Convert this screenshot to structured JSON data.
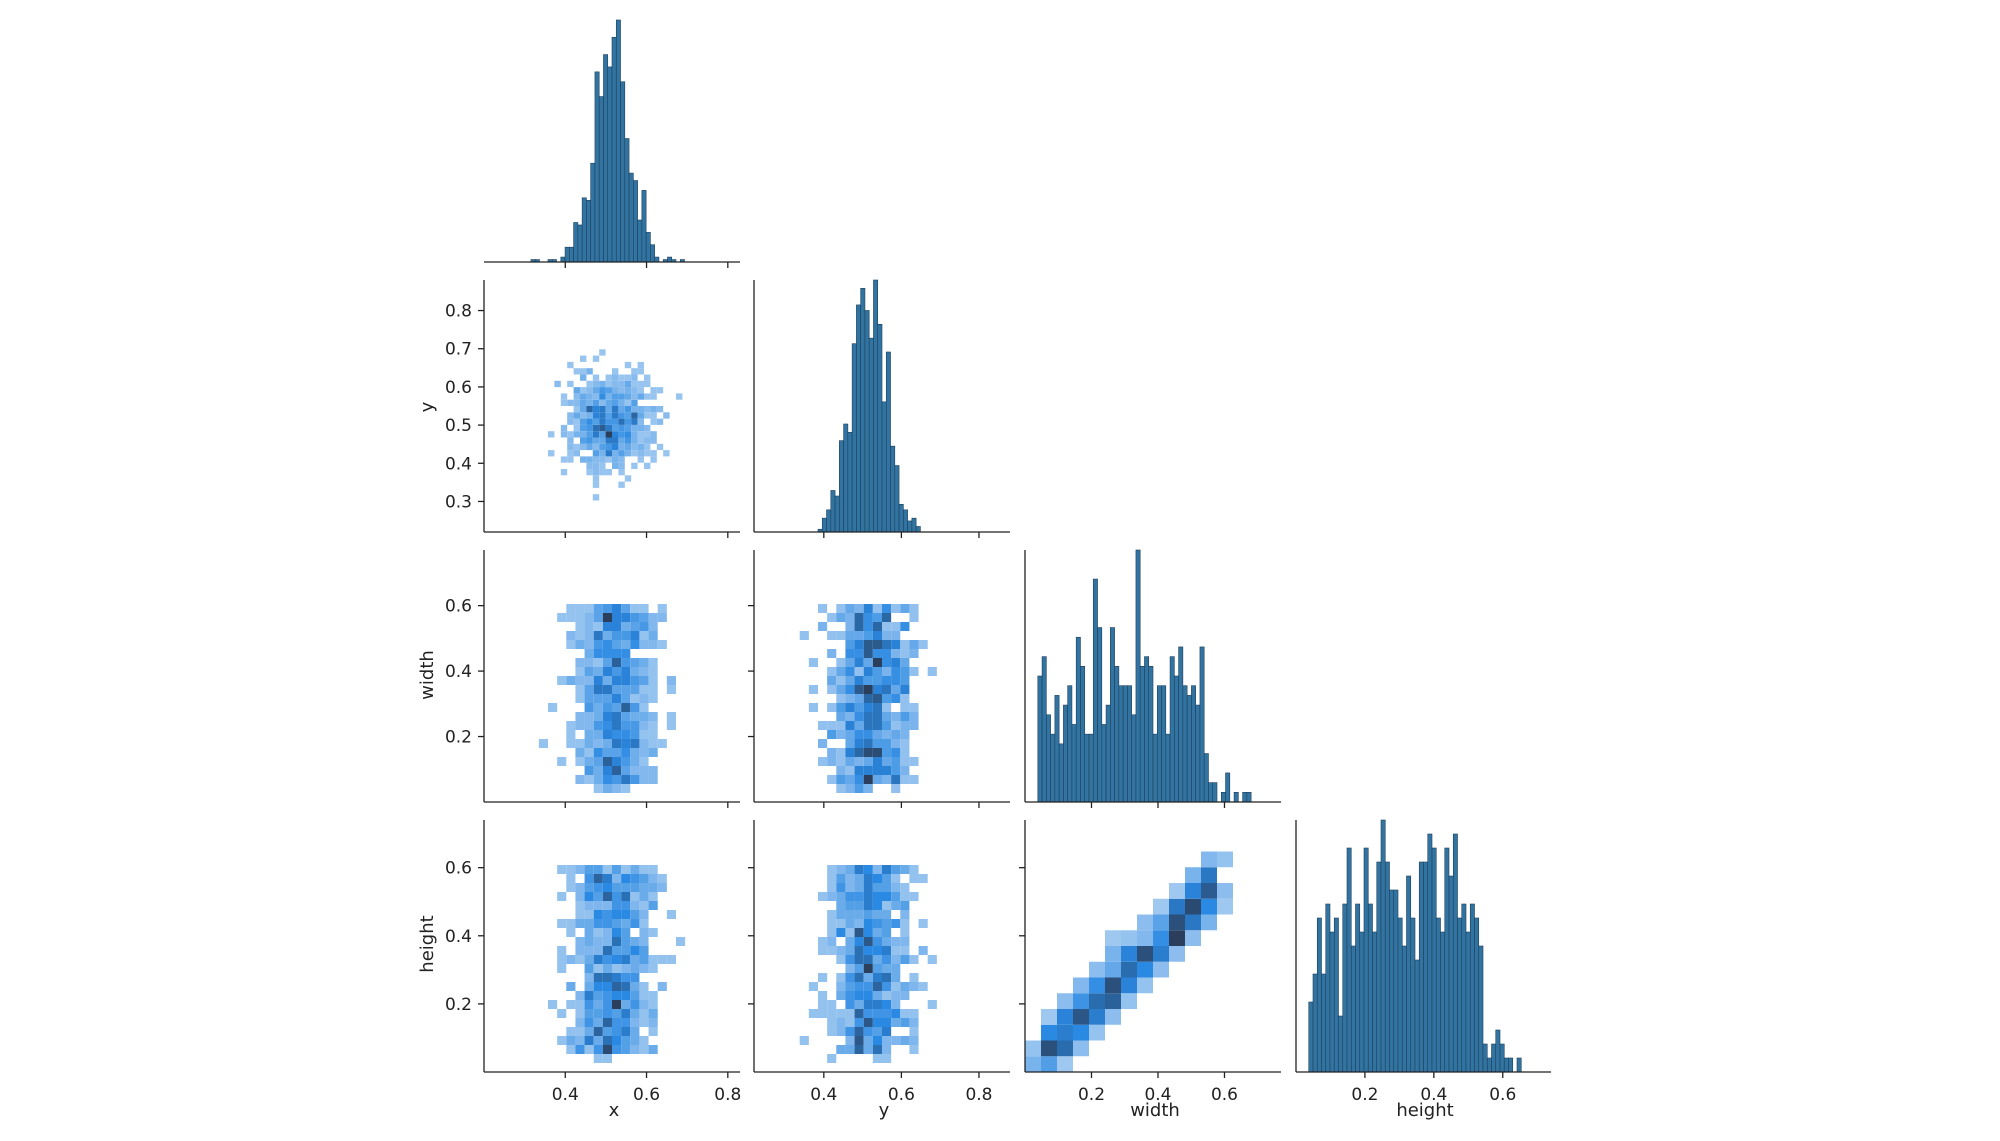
{
  "chart_data": {
    "type": "pairplot-histogram",
    "variables": [
      "x",
      "y",
      "width",
      "height"
    ],
    "colors": {
      "hist": "#3274a1",
      "edge": "#1f3f5a",
      "density_low": "#a9cdf2",
      "density_high": "#2b3f5c"
    },
    "ranges": {
      "x": [
        0.2,
        0.83
      ],
      "y": [
        0.22,
        0.88
      ],
      "width": [
        0.0,
        0.77
      ],
      "height": [
        0.0,
        0.74
      ]
    },
    "ticks": {
      "x": {
        "values": [
          0.4,
          0.6,
          0.8
        ],
        "labels": [
          "0.4",
          "0.6",
          "0.8"
        ]
      },
      "y_diag": {
        "values": [
          0.4,
          0.6,
          0.8
        ],
        "labels": [
          "0.4",
          "0.6",
          "0.8"
        ]
      },
      "y_row": {
        "values": [
          0.3,
          0.4,
          0.5,
          0.6,
          0.7,
          0.8
        ],
        "labels": [
          "0.3",
          "0.4",
          "0.5",
          "0.6",
          "0.7",
          "0.8"
        ]
      },
      "width": {
        "values": [
          0.2,
          0.4,
          0.6
        ],
        "labels": [
          "0.2",
          "0.4",
          "0.6"
        ]
      },
      "height": {
        "values": [
          0.2,
          0.4,
          0.6
        ],
        "labels": [
          "0.2",
          "0.4",
          "0.6"
        ]
      }
    },
    "diagonal_histograms": [
      {
        "variable": "x",
        "peak": 0.52,
        "spread": 0.045,
        "tail": "symmetric"
      },
      {
        "variable": "y",
        "peak": 0.52,
        "spread": 0.045,
        "tail": "symmetric"
      },
      {
        "variable": "width",
        "peak": 0.3,
        "spread": 0.14,
        "tail": "uniform-ish"
      },
      {
        "variable": "height",
        "peak": 0.33,
        "spread": 0.14,
        "tail": "uniform-ish"
      }
    ],
    "bivariate_panels": [
      {
        "row": "y",
        "col": "x",
        "pattern": "round cluster centered at (0.51, 0.51)"
      },
      {
        "row": "width",
        "col": "x",
        "pattern": "vertical band centered at x=0.52"
      },
      {
        "row": "width",
        "col": "y",
        "pattern": "vertical band centered at y=0.52"
      },
      {
        "row": "width",
        "col": "width",
        "pattern": "histogram"
      },
      {
        "row": "height",
        "col": "x",
        "pattern": "vertical band centered at x=0.52"
      },
      {
        "row": "height",
        "col": "y",
        "pattern": "vertical band centered at y=0.52"
      },
      {
        "row": "height",
        "col": "width",
        "pattern": "strong positive linear correlation"
      }
    ],
    "axis_labels": {
      "x": "x",
      "y": "y",
      "width": "width",
      "height": "height"
    }
  }
}
